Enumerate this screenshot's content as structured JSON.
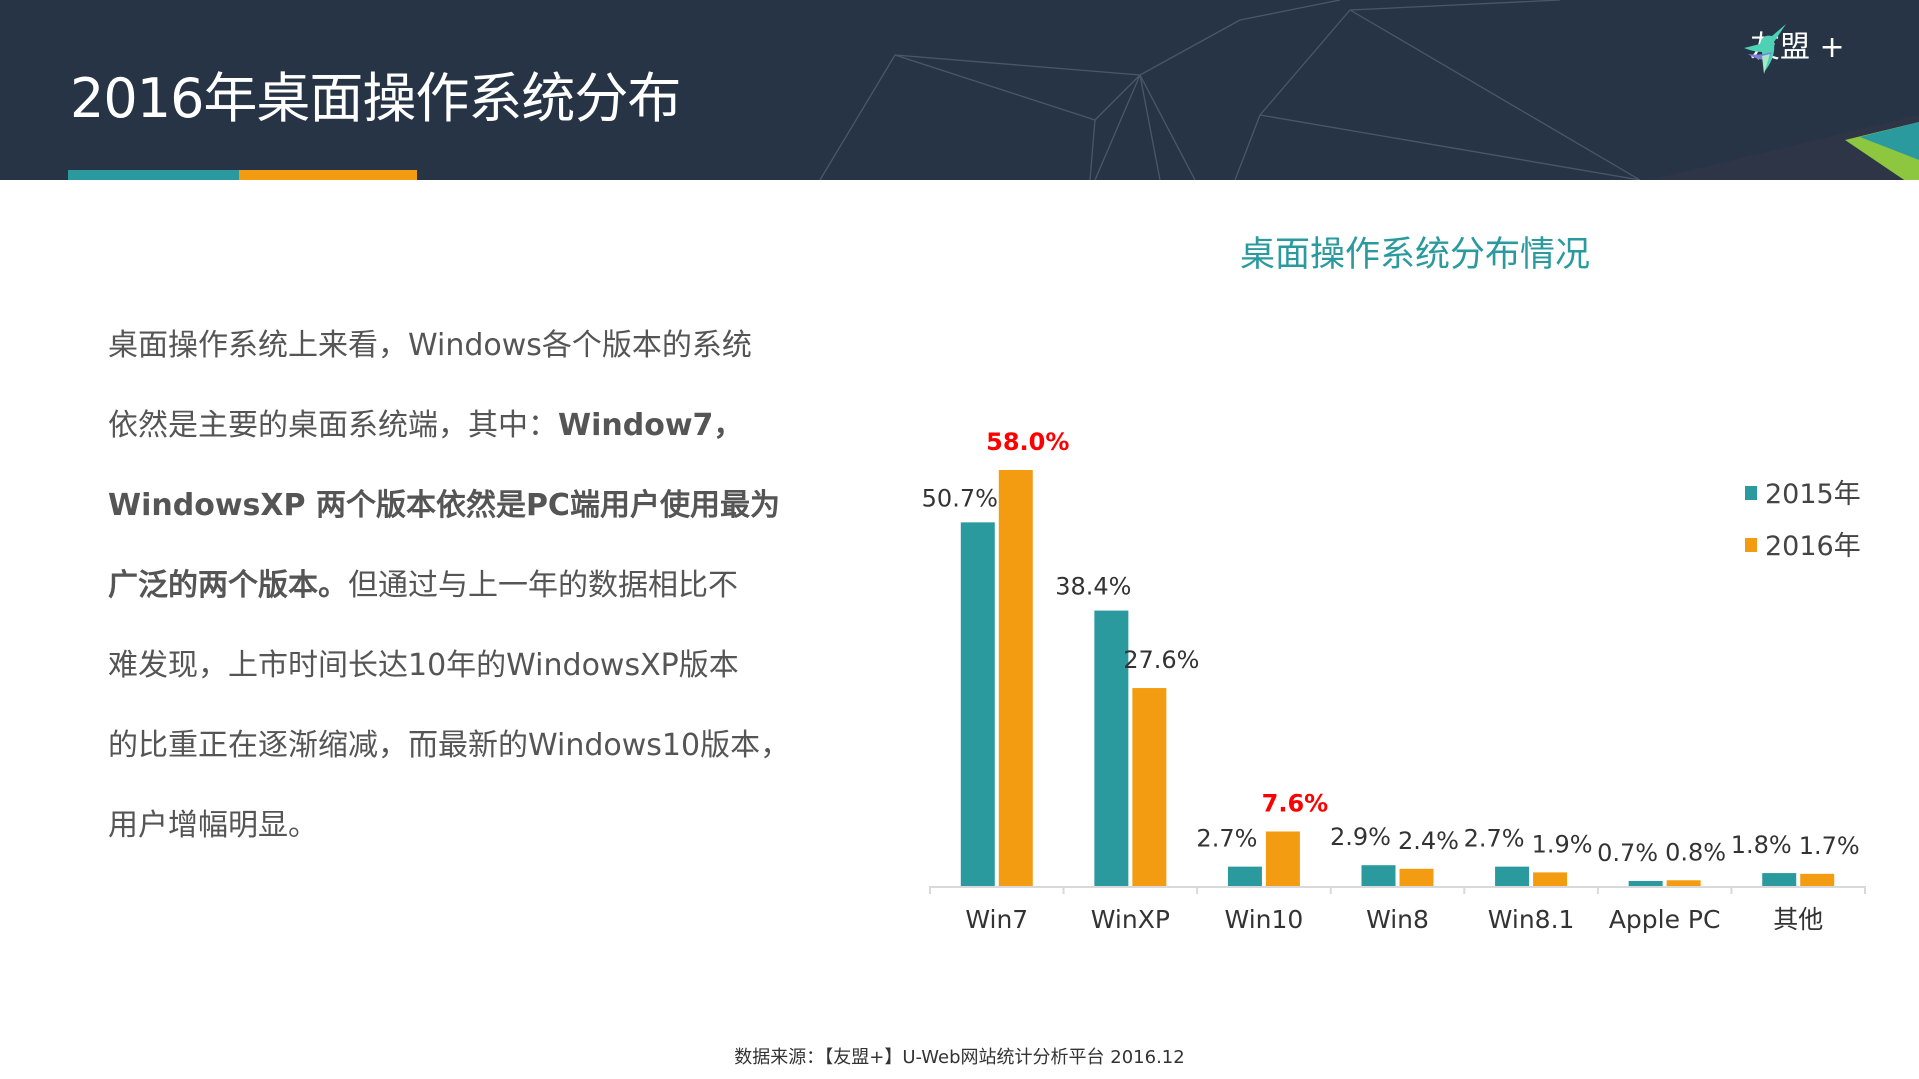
{
  "header": {
    "title": "2016年桌面操作系统分布",
    "logo_text": "友盟 +"
  },
  "body_text": {
    "lines": [
      [
        {
          "t": "桌面操作系统上来看，Windows各个版本的系统",
          "b": false
        }
      ],
      [
        {
          "t": "依然是主要的桌面系统端，其中：",
          "b": false
        },
        {
          "t": "Window7，",
          "b": true
        }
      ],
      [
        {
          "t": "WindowsXP 两个版本依然是PC端用户使用最为",
          "b": true
        }
      ],
      [
        {
          "t": "广泛的两个版本。",
          "b": true
        },
        {
          "t": "但通过与上一年的数据相比不",
          "b": false
        }
      ],
      [
        {
          "t": "难发现，上市时间长达10年的WindowsXP版本",
          "b": false
        }
      ],
      [
        {
          "t": "的比重正在逐渐缩减，而最新的Windows10版本，",
          "b": false
        }
      ],
      [
        {
          "t": "用户增幅明显。",
          "b": false
        }
      ]
    ]
  },
  "chart_data": {
    "type": "bar",
    "title": "桌面操作系统分布情况",
    "categories": [
      "Win7",
      "WinXP",
      "Win10",
      "Win8",
      "Win8.1",
      "Apple PC",
      "其他"
    ],
    "series": [
      {
        "name": "2015年",
        "color": "#2a9a9f",
        "values": [
          50.7,
          38.4,
          2.7,
          2.9,
          2.7,
          0.7,
          1.8
        ],
        "labels": [
          "50.7%",
          "38.4%",
          "2.7%",
          "2.9%",
          "2.7%",
          "0.7%",
          "1.8%"
        ]
      },
      {
        "name": "2016年",
        "color": "#f39c12",
        "values": [
          58.0,
          27.6,
          7.6,
          2.4,
          1.9,
          0.8,
          1.7
        ],
        "labels": [
          "58.0%",
          "27.6%",
          "7.6%",
          "2.4%",
          "1.9%",
          "0.8%",
          "1.7%"
        ]
      }
    ],
    "highlighted_labels": [
      "58.0%",
      "7.6%"
    ],
    "highlight_color": "#ff0000",
    "ylim": [
      0,
      60
    ],
    "grid": false,
    "legend": "right"
  },
  "footer": {
    "source": "数据来源：【友盟+】U-Web网站统计分析平台 2016.12"
  }
}
